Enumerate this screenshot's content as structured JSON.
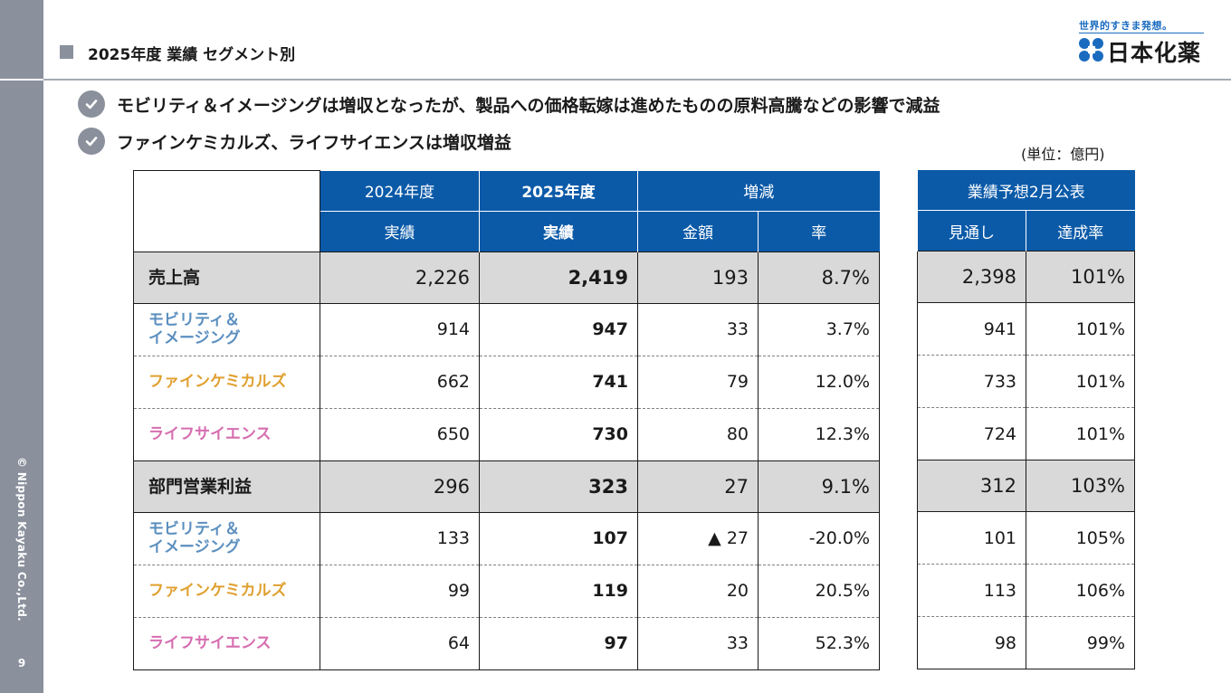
{
  "sidebar": {
    "copyright": "© Nippon Kayaku Co.,Ltd.",
    "page_number": "9"
  },
  "header": {
    "title": "2025年度 業績 セグメント別"
  },
  "logo": {
    "tagline": "世界的すきま発想。",
    "name": "日本化薬",
    "color": "#1a6bbf"
  },
  "bullets": [
    "モビリティ＆イメージングは増収となったが、製品への価格転嫁は進めたものの原料高騰などの影響で減益",
    "ファインケミカルズ、ライフサイエンスは増収増益"
  ],
  "unit": "(単位：億円)",
  "colors": {
    "header_blue": "#0b5aa8",
    "mobility": "#5b8fbf",
    "fine_chem": "#e0a030",
    "life_sci": "#d66eb0",
    "total_row": "#d9d9d9"
  },
  "table": {
    "headers": {
      "fy2024": "2024年度",
      "fy2025": "2025年度",
      "change": "増減",
      "forecast": "業績予想2月公表",
      "actual_2024": "実績",
      "actual_2025": "実績",
      "amount": "金額",
      "rate": "率",
      "outlook": "見通し",
      "achievement": "達成率"
    },
    "rows": [
      {
        "label": "売上高",
        "fy2024": "2,226",
        "fy2025": "2,419",
        "amount": "193",
        "rate": "8.7%",
        "outlook": "2,398",
        "achievement": "101%"
      },
      {
        "label_line1": "モビリティ＆",
        "label_line2": "イメージング",
        "fy2024": "914",
        "fy2025": "947",
        "amount": "33",
        "rate": "3.7%",
        "outlook": "941",
        "achievement": "101%"
      },
      {
        "label": "ファインケミカルズ",
        "fy2024": "662",
        "fy2025": "741",
        "amount": "79",
        "rate": "12.0%",
        "outlook": "733",
        "achievement": "101%"
      },
      {
        "label": "ライフサイエンス",
        "fy2024": "650",
        "fy2025": "730",
        "amount": "80",
        "rate": "12.3%",
        "outlook": "724",
        "achievement": "101%"
      },
      {
        "label": "部門営業利益",
        "fy2024": "296",
        "fy2025": "323",
        "amount": "27",
        "rate": "9.1%",
        "outlook": "312",
        "achievement": "103%"
      },
      {
        "label_line1": "モビリティ＆",
        "label_line2": "イメージング",
        "fy2024": "133",
        "fy2025": "107",
        "amount": "▲ 27",
        "rate": "-20.0%",
        "outlook": "101",
        "achievement": "105%"
      },
      {
        "label": "ファインケミカルズ",
        "fy2024": "99",
        "fy2025": "119",
        "amount": "20",
        "rate": "20.5%",
        "outlook": "113",
        "achievement": "106%"
      },
      {
        "label": "ライフサイエンス",
        "fy2024": "64",
        "fy2025": "97",
        "amount": "33",
        "rate": "52.3%",
        "outlook": "98",
        "achievement": "99%"
      }
    ]
  }
}
